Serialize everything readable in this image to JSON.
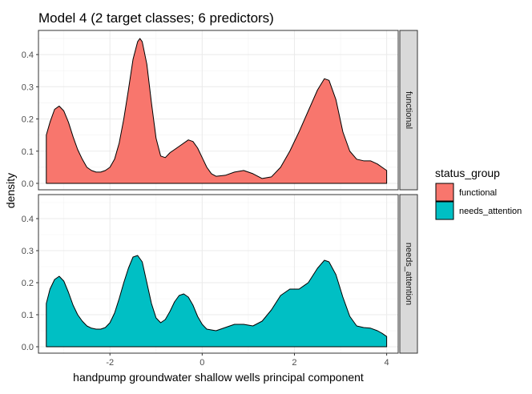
{
  "chart_data": {
    "type": "area",
    "title": "Model 4 (2 target classes; 6 predictors)",
    "xlabel": "handpump groundwater shallow wells principal component",
    "ylabel": "density",
    "xlim": [
      -3.55,
      4.25
    ],
    "ylim": [
      -0.02,
      0.475
    ],
    "x_ticks": [
      -2,
      0,
      2,
      4
    ],
    "y_ticks": [
      0.0,
      0.1,
      0.2,
      0.3,
      0.4
    ],
    "y_tick_labels": [
      "0.0",
      "0.1",
      "0.2",
      "0.3",
      "0.4"
    ],
    "grid": true,
    "legend": {
      "title": "status_group",
      "placement": "right",
      "entries": [
        {
          "label": "functional",
          "color": "#F8766D"
        },
        {
          "label": "needs_attention",
          "color": "#00BFC4"
        }
      ]
    },
    "panels": [
      {
        "strip": "functional",
        "color": "#F8766D",
        "points": [
          [
            -3.38,
            0.15
          ],
          [
            -3.3,
            0.19
          ],
          [
            -3.2,
            0.23
          ],
          [
            -3.1,
            0.24
          ],
          [
            -3.0,
            0.225
          ],
          [
            -2.9,
            0.19
          ],
          [
            -2.8,
            0.145
          ],
          [
            -2.7,
            0.105
          ],
          [
            -2.6,
            0.075
          ],
          [
            -2.5,
            0.05
          ],
          [
            -2.4,
            0.04
          ],
          [
            -2.3,
            0.035
          ],
          [
            -2.2,
            0.035
          ],
          [
            -2.1,
            0.04
          ],
          [
            -2.0,
            0.05
          ],
          [
            -1.9,
            0.075
          ],
          [
            -1.8,
            0.125
          ],
          [
            -1.7,
            0.2
          ],
          [
            -1.6,
            0.29
          ],
          [
            -1.5,
            0.385
          ],
          [
            -1.4,
            0.44
          ],
          [
            -1.35,
            0.45
          ],
          [
            -1.3,
            0.44
          ],
          [
            -1.2,
            0.37
          ],
          [
            -1.1,
            0.25
          ],
          [
            -1.0,
            0.14
          ],
          [
            -0.9,
            0.085
          ],
          [
            -0.8,
            0.08
          ],
          [
            -0.7,
            0.095
          ],
          [
            -0.5,
            0.115
          ],
          [
            -0.3,
            0.135
          ],
          [
            -0.2,
            0.13
          ],
          [
            -0.1,
            0.11
          ],
          [
            0.0,
            0.08
          ],
          [
            0.1,
            0.05
          ],
          [
            0.2,
            0.03
          ],
          [
            0.3,
            0.022
          ],
          [
            0.5,
            0.025
          ],
          [
            0.7,
            0.035
          ],
          [
            0.9,
            0.04
          ],
          [
            1.1,
            0.03
          ],
          [
            1.3,
            0.015
          ],
          [
            1.5,
            0.02
          ],
          [
            1.7,
            0.05
          ],
          [
            1.9,
            0.1
          ],
          [
            2.1,
            0.16
          ],
          [
            2.3,
            0.225
          ],
          [
            2.5,
            0.29
          ],
          [
            2.65,
            0.325
          ],
          [
            2.75,
            0.32
          ],
          [
            2.9,
            0.26
          ],
          [
            3.05,
            0.16
          ],
          [
            3.2,
            0.1
          ],
          [
            3.35,
            0.075
          ],
          [
            3.5,
            0.07
          ],
          [
            3.65,
            0.07
          ],
          [
            3.8,
            0.06
          ],
          [
            3.9,
            0.05
          ],
          [
            4.0,
            0.04
          ]
        ]
      },
      {
        "strip": "needs_attention",
        "color": "#00BFC4",
        "points": [
          [
            -3.38,
            0.135
          ],
          [
            -3.3,
            0.18
          ],
          [
            -3.2,
            0.21
          ],
          [
            -3.1,
            0.22
          ],
          [
            -3.0,
            0.205
          ],
          [
            -2.9,
            0.17
          ],
          [
            -2.8,
            0.13
          ],
          [
            -2.7,
            0.1
          ],
          [
            -2.6,
            0.08
          ],
          [
            -2.5,
            0.065
          ],
          [
            -2.4,
            0.058
          ],
          [
            -2.3,
            0.055
          ],
          [
            -2.2,
            0.055
          ],
          [
            -2.1,
            0.06
          ],
          [
            -2.0,
            0.075
          ],
          [
            -1.9,
            0.105
          ],
          [
            -1.8,
            0.15
          ],
          [
            -1.7,
            0.2
          ],
          [
            -1.6,
            0.245
          ],
          [
            -1.5,
            0.28
          ],
          [
            -1.4,
            0.285
          ],
          [
            -1.3,
            0.265
          ],
          [
            -1.2,
            0.2
          ],
          [
            -1.1,
            0.135
          ],
          [
            -1.0,
            0.09
          ],
          [
            -0.9,
            0.075
          ],
          [
            -0.8,
            0.085
          ],
          [
            -0.7,
            0.11
          ],
          [
            -0.6,
            0.14
          ],
          [
            -0.5,
            0.16
          ],
          [
            -0.4,
            0.165
          ],
          [
            -0.3,
            0.155
          ],
          [
            -0.2,
            0.13
          ],
          [
            -0.1,
            0.095
          ],
          [
            0.0,
            0.07
          ],
          [
            0.1,
            0.055
          ],
          [
            0.3,
            0.05
          ],
          [
            0.5,
            0.06
          ],
          [
            0.7,
            0.07
          ],
          [
            0.9,
            0.07
          ],
          [
            1.1,
            0.065
          ],
          [
            1.3,
            0.08
          ],
          [
            1.5,
            0.115
          ],
          [
            1.7,
            0.16
          ],
          [
            1.9,
            0.18
          ],
          [
            2.1,
            0.18
          ],
          [
            2.3,
            0.2
          ],
          [
            2.5,
            0.245
          ],
          [
            2.65,
            0.27
          ],
          [
            2.75,
            0.265
          ],
          [
            2.9,
            0.225
          ],
          [
            3.05,
            0.155
          ],
          [
            3.2,
            0.095
          ],
          [
            3.35,
            0.065
          ],
          [
            3.5,
            0.06
          ],
          [
            3.65,
            0.058
          ],
          [
            3.8,
            0.05
          ],
          [
            3.9,
            0.042
          ],
          [
            4.0,
            0.032
          ]
        ]
      }
    ]
  }
}
